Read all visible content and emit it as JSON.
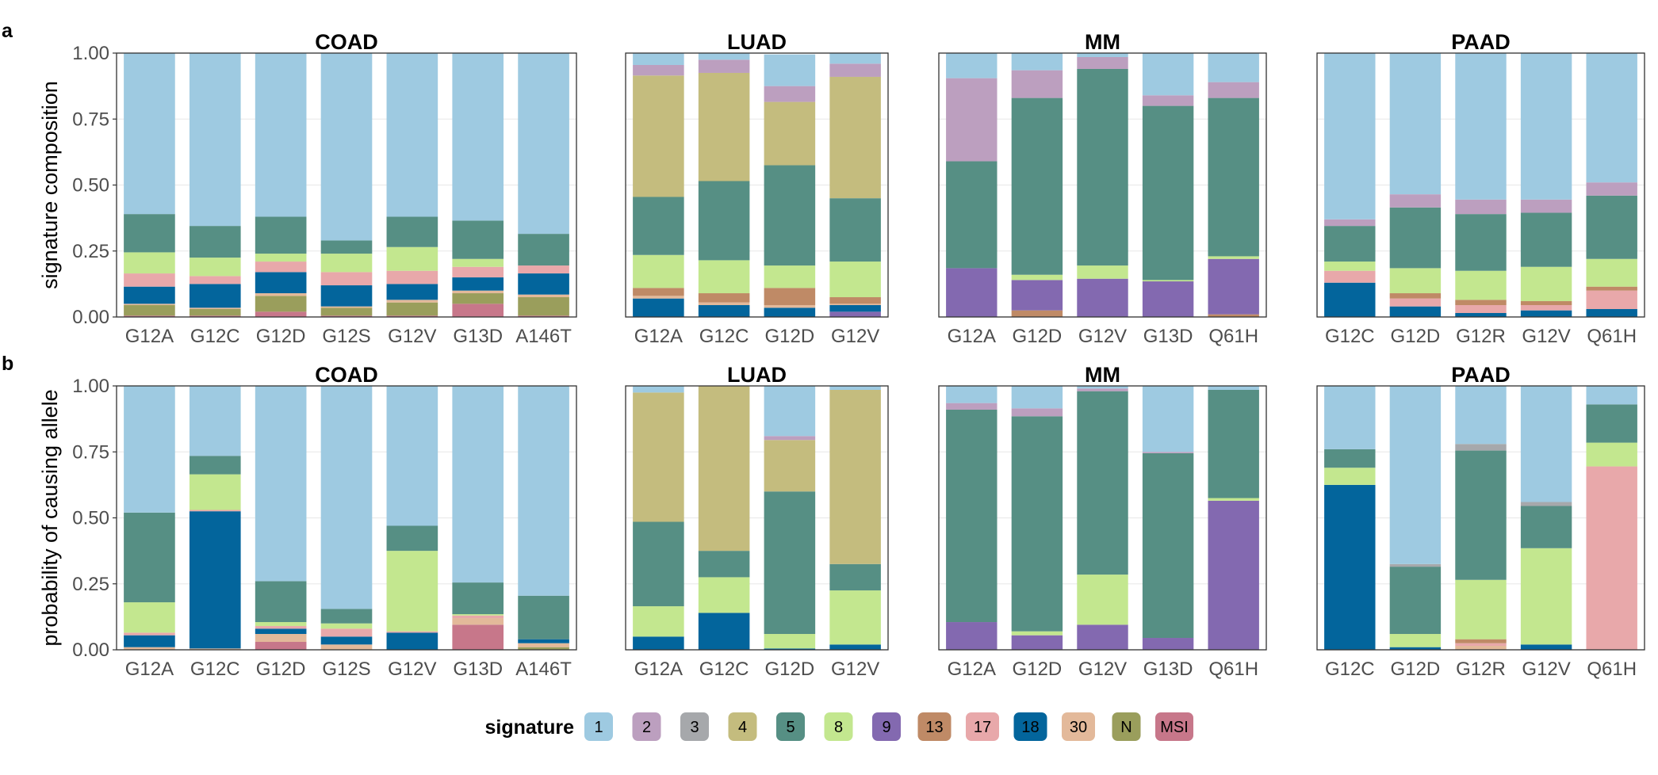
{
  "signature_legend": {
    "title": "signature",
    "items": [
      {
        "label": "1",
        "color": "#9ecae1"
      },
      {
        "label": "2",
        "color": "#bc9fbf"
      },
      {
        "label": "3",
        "color": "#a6a8ab"
      },
      {
        "label": "4",
        "color": "#c4bc7e"
      },
      {
        "label": "5",
        "color": "#568f84"
      },
      {
        "label": "8",
        "color": "#c3e78f"
      },
      {
        "label": "9",
        "color": "#8369b0"
      },
      {
        "label": "13",
        "color": "#bf8a66"
      },
      {
        "label": "17",
        "color": "#e8a8aa"
      },
      {
        "label": "18",
        "color": "#03659c"
      },
      {
        "label": "30",
        "color": "#e3b99a"
      },
      {
        "label": "N",
        "color": "#9a9e5c"
      },
      {
        "label": "MSI",
        "color": "#c7778a"
      }
    ]
  },
  "chart_data": [
    {
      "type": "bar",
      "stacked": true,
      "row": "a",
      "title": "COAD",
      "ylabel": "signature composition",
      "ylim": [
        0,
        1
      ],
      "yticks": [
        "0.00",
        "0.25",
        "0.50",
        "0.75",
        "1.00"
      ],
      "categories": [
        "G12A",
        "G12C",
        "G12D",
        "G12S",
        "G12V",
        "G13D",
        "A146T"
      ],
      "series": [
        {
          "name": "MSI",
          "values": [
            0.005,
            0.005,
            0.02,
            0.005,
            0.005,
            0.05,
            0.005
          ]
        },
        {
          "name": "N",
          "values": [
            0.04,
            0.025,
            0.06,
            0.03,
            0.05,
            0.04,
            0.07
          ]
        },
        {
          "name": "30",
          "values": [
            0.005,
            0.005,
            0.01,
            0.005,
            0.01,
            0.01,
            0.01
          ]
        },
        {
          "name": "18",
          "values": [
            0.065,
            0.09,
            0.08,
            0.08,
            0.06,
            0.05,
            0.08
          ]
        },
        {
          "name": "17",
          "values": [
            0.05,
            0.03,
            0.04,
            0.05,
            0.05,
            0.04,
            0.03
          ]
        },
        {
          "name": "8",
          "values": [
            0.08,
            0.07,
            0.03,
            0.07,
            0.09,
            0.03,
            0.0
          ]
        },
        {
          "name": "5",
          "values": [
            0.145,
            0.12,
            0.14,
            0.05,
            0.115,
            0.145,
            0.12
          ]
        },
        {
          "name": "1",
          "values": [
            0.61,
            0.655,
            0.62,
            0.71,
            0.62,
            0.635,
            0.685
          ]
        }
      ]
    },
    {
      "type": "bar",
      "stacked": true,
      "row": "a",
      "title": "LUAD",
      "ylim": [
        0,
        1
      ],
      "categories": [
        "G12A",
        "G12C",
        "G12D",
        "G12V"
      ],
      "series": [
        {
          "name": "9",
          "values": [
            0.0,
            0.0,
            0.0,
            0.02
          ]
        },
        {
          "name": "18",
          "values": [
            0.07,
            0.045,
            0.035,
            0.025
          ]
        },
        {
          "name": "30",
          "values": [
            0.01,
            0.01,
            0.01,
            0.005
          ]
        },
        {
          "name": "13",
          "values": [
            0.03,
            0.035,
            0.065,
            0.025
          ]
        },
        {
          "name": "8",
          "values": [
            0.125,
            0.125,
            0.085,
            0.135
          ]
        },
        {
          "name": "5",
          "values": [
            0.22,
            0.3,
            0.38,
            0.24
          ]
        },
        {
          "name": "4",
          "values": [
            0.46,
            0.41,
            0.24,
            0.46
          ]
        },
        {
          "name": "2",
          "values": [
            0.04,
            0.05,
            0.06,
            0.05
          ]
        },
        {
          "name": "1",
          "values": [
            0.045,
            0.025,
            0.12,
            0.04
          ]
        }
      ]
    },
    {
      "type": "bar",
      "stacked": true,
      "row": "a",
      "title": "MM",
      "ylim": [
        0,
        1
      ],
      "categories": [
        "G12A",
        "G12D",
        "G12V",
        "G13D",
        "Q61H"
      ],
      "series": [
        {
          "name": "13",
          "values": [
            0.0,
            0.025,
            0.0,
            0.0,
            0.01
          ]
        },
        {
          "name": "9",
          "values": [
            0.185,
            0.115,
            0.145,
            0.135,
            0.21
          ]
        },
        {
          "name": "8",
          "values": [
            0.0,
            0.02,
            0.05,
            0.005,
            0.01
          ]
        },
        {
          "name": "5",
          "values": [
            0.405,
            0.67,
            0.745,
            0.66,
            0.6
          ]
        },
        {
          "name": "2",
          "values": [
            0.315,
            0.105,
            0.045,
            0.04,
            0.06
          ]
        },
        {
          "name": "1",
          "values": [
            0.095,
            0.065,
            0.015,
            0.16,
            0.11
          ]
        }
      ]
    },
    {
      "type": "bar",
      "stacked": true,
      "row": "a",
      "title": "PAAD",
      "ylim": [
        0,
        1
      ],
      "categories": [
        "G12C",
        "G12D",
        "G12R",
        "G12V",
        "Q61H"
      ],
      "series": [
        {
          "name": "18",
          "values": [
            0.13,
            0.04,
            0.015,
            0.025,
            0.03
          ]
        },
        {
          "name": "17",
          "values": [
            0.045,
            0.03,
            0.03,
            0.02,
            0.07
          ]
        },
        {
          "name": "13",
          "values": [
            0.0,
            0.02,
            0.02,
            0.015,
            0.015
          ]
        },
        {
          "name": "8",
          "values": [
            0.035,
            0.095,
            0.11,
            0.13,
            0.105
          ]
        },
        {
          "name": "5",
          "values": [
            0.135,
            0.23,
            0.215,
            0.205,
            0.24
          ]
        },
        {
          "name": "2",
          "values": [
            0.025,
            0.05,
            0.055,
            0.05,
            0.05
          ]
        },
        {
          "name": "1",
          "values": [
            0.63,
            0.535,
            0.555,
            0.555,
            0.49
          ]
        }
      ]
    },
    {
      "type": "bar",
      "stacked": true,
      "row": "b",
      "title": "COAD",
      "ylabel": "probability of causing allele",
      "ylim": [
        0,
        1
      ],
      "yticks": [
        "0.00",
        "0.25",
        "0.50",
        "0.75",
        "1.00"
      ],
      "categories": [
        "G12A",
        "G12C",
        "G12D",
        "G12S",
        "G12V",
        "G13D",
        "A146T"
      ],
      "series": [
        {
          "name": "MSI",
          "values": [
            0.0,
            0.0,
            0.03,
            0.0,
            0.0,
            0.095,
            0.0
          ]
        },
        {
          "name": "N",
          "values": [
            0.0,
            0.0,
            0.0,
            0.0,
            0.0,
            0.0,
            0.01
          ]
        },
        {
          "name": "30",
          "values": [
            0.01,
            0.005,
            0.03,
            0.02,
            0.0,
            0.025,
            0.015
          ]
        },
        {
          "name": "18",
          "values": [
            0.045,
            0.52,
            0.02,
            0.03,
            0.065,
            0.0,
            0.015
          ]
        },
        {
          "name": "17",
          "values": [
            0.01,
            0.005,
            0.01,
            0.03,
            0.005,
            0.01,
            0.0
          ]
        },
        {
          "name": "8",
          "values": [
            0.115,
            0.135,
            0.015,
            0.02,
            0.305,
            0.005,
            0.0
          ]
        },
        {
          "name": "5",
          "values": [
            0.34,
            0.07,
            0.155,
            0.055,
            0.095,
            0.12,
            0.165
          ]
        },
        {
          "name": "1",
          "values": [
            0.48,
            0.265,
            0.74,
            0.845,
            0.53,
            0.745,
            0.795
          ]
        }
      ]
    },
    {
      "type": "bar",
      "stacked": true,
      "row": "b",
      "title": "LUAD",
      "ylim": [
        0,
        1
      ],
      "categories": [
        "G12A",
        "G12C",
        "G12D",
        "G12V"
      ],
      "series": [
        {
          "name": "18",
          "values": [
            0.05,
            0.14,
            0.005,
            0.02
          ]
        },
        {
          "name": "8",
          "values": [
            0.115,
            0.135,
            0.055,
            0.205
          ]
        },
        {
          "name": "5",
          "values": [
            0.32,
            0.1,
            0.54,
            0.1
          ]
        },
        {
          "name": "4",
          "values": [
            0.49,
            0.625,
            0.195,
            0.66
          ]
        },
        {
          "name": "2",
          "values": [
            0.0,
            0.0,
            0.015,
            0.0
          ]
        },
        {
          "name": "1",
          "values": [
            0.025,
            0.0,
            0.19,
            0.015
          ]
        }
      ]
    },
    {
      "type": "bar",
      "stacked": true,
      "row": "b",
      "title": "MM",
      "ylim": [
        0,
        1
      ],
      "categories": [
        "G12A",
        "G12D",
        "G12V",
        "G13D",
        "Q61H"
      ],
      "series": [
        {
          "name": "9",
          "values": [
            0.105,
            0.055,
            0.095,
            0.045,
            0.565
          ]
        },
        {
          "name": "8",
          "values": [
            0.0,
            0.015,
            0.19,
            0.0,
            0.01
          ]
        },
        {
          "name": "5",
          "values": [
            0.805,
            0.815,
            0.695,
            0.7,
            0.41
          ]
        },
        {
          "name": "2",
          "values": [
            0.025,
            0.03,
            0.01,
            0.005,
            0.0
          ]
        },
        {
          "name": "1",
          "values": [
            0.065,
            0.085,
            0.01,
            0.25,
            0.015
          ]
        }
      ]
    },
    {
      "type": "bar",
      "stacked": true,
      "row": "b",
      "title": "PAAD",
      "ylim": [
        0,
        1
      ],
      "categories": [
        "G12C",
        "G12D",
        "G12R",
        "G12V",
        "Q61H"
      ],
      "series": [
        {
          "name": "18",
          "values": [
            0.625,
            0.01,
            0.0,
            0.02,
            0.0
          ]
        },
        {
          "name": "30",
          "values": [
            0.0,
            0.0,
            0.015,
            0.0,
            0.0
          ]
        },
        {
          "name": "17",
          "values": [
            0.0,
            0.0,
            0.01,
            0.0,
            0.695
          ]
        },
        {
          "name": "13",
          "values": [
            0.0,
            0.0,
            0.015,
            0.0,
            0.0
          ]
        },
        {
          "name": "8",
          "values": [
            0.065,
            0.05,
            0.225,
            0.365,
            0.09
          ]
        },
        {
          "name": "5",
          "values": [
            0.07,
            0.255,
            0.49,
            0.16,
            0.145
          ]
        },
        {
          "name": "3",
          "values": [
            0.0,
            0.01,
            0.025,
            0.015,
            0.0
          ]
        },
        {
          "name": "1",
          "values": [
            0.24,
            0.675,
            0.22,
            0.44,
            0.07
          ]
        }
      ]
    }
  ],
  "row_labels": [
    "a",
    "b"
  ]
}
